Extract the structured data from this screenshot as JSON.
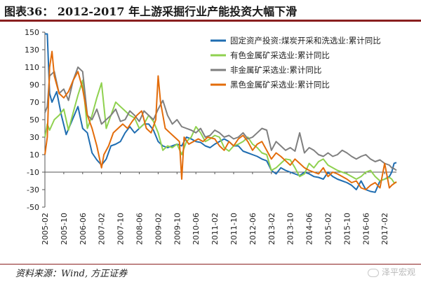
{
  "title": "图表36： 2012-2017 年上游采掘行业产能投资大幅下滑",
  "source": "资料来源：Wind, 方正证券",
  "watermark": "泽平宏观",
  "chart_data": {
    "type": "line",
    "title": "",
    "xlabel": "",
    "ylabel": "",
    "ylim": [
      -50,
      150
    ],
    "yticks": [
      -50,
      -30,
      -10,
      10,
      30,
      50,
      70,
      90,
      110,
      130,
      150
    ],
    "x_range": [
      "2005-02",
      "2017-07"
    ],
    "x_tick_labels": [
      "2005-02",
      "2005-10",
      "2006-06",
      "2007-02",
      "2007-10",
      "2008-06",
      "2009-02",
      "2009-10",
      "2010-06",
      "2011-02",
      "2011-10",
      "2012-06",
      "2013-02",
      "2013-10",
      "2014-06",
      "2015-02",
      "2015-10",
      "2016-06",
      "2017-02"
    ],
    "grid": false,
    "legend_position": "top-right",
    "series": [
      {
        "name": "固定资产投资:煤炭开采和洗选业:累计同比",
        "color": "#1f6db1",
        "x": [
          "2005-02",
          "2005-03",
          "2005-04",
          "2005-05",
          "2005-07",
          "2005-09",
          "2005-11",
          "2006-02",
          "2006-04",
          "2006-06",
          "2006-08",
          "2006-10",
          "2006-12",
          "2007-02",
          "2007-04",
          "2007-06",
          "2007-08",
          "2007-10",
          "2007-12",
          "2008-02",
          "2008-04",
          "2008-06",
          "2008-08",
          "2008-10",
          "2008-12",
          "2009-02",
          "2009-04",
          "2009-06",
          "2009-08",
          "2009-10",
          "2009-12",
          "2010-02",
          "2010-04",
          "2010-06",
          "2010-08",
          "2010-10",
          "2010-12",
          "2011-02",
          "2011-04",
          "2011-06",
          "2011-08",
          "2011-10",
          "2011-12",
          "2012-02",
          "2012-04",
          "2012-06",
          "2012-08",
          "2012-10",
          "2012-12",
          "2013-02",
          "2013-04",
          "2013-06",
          "2013-08",
          "2013-10",
          "2013-12",
          "2014-02",
          "2014-04",
          "2014-06",
          "2014-08",
          "2014-10",
          "2014-12",
          "2015-02",
          "2015-04",
          "2015-06",
          "2015-08",
          "2015-10",
          "2015-12",
          "2016-02",
          "2016-04",
          "2016-06",
          "2016-08",
          "2016-10",
          "2016-12",
          "2017-02",
          "2017-04",
          "2017-05",
          "2017-06",
          "2017-07"
        ],
        "values": [
          148,
          148,
          80,
          70,
          82,
          55,
          33,
          52,
          65,
          40,
          35,
          12,
          4,
          -2,
          5,
          20,
          22,
          25,
          35,
          42,
          35,
          40,
          45,
          45,
          38,
          25,
          20,
          18,
          20,
          22,
          20,
          30,
          28,
          25,
          24,
          20,
          18,
          22,
          25,
          28,
          25,
          20,
          20,
          14,
          12,
          10,
          8,
          5,
          3,
          -8,
          -12,
          -5,
          -8,
          -10,
          -12,
          -14,
          -10,
          -12,
          -15,
          -16,
          -18,
          -10,
          -15,
          -18,
          -20,
          -22,
          -25,
          -30,
          -20,
          -30,
          -32,
          -33,
          -20,
          -18,
          -15,
          -10,
          0,
          1
        ]
      },
      {
        "name": "有色金属矿采选业:累计同比",
        "color": "#8fd14f",
        "x": [
          "2005-02",
          "2005-03",
          "2005-04",
          "2005-06",
          "2005-08",
          "2005-10",
          "2005-12",
          "2006-02",
          "2006-04",
          "2006-06",
          "2006-08",
          "2006-10",
          "2006-12",
          "2007-02",
          "2007-04",
          "2007-06",
          "2007-08",
          "2007-10",
          "2007-12",
          "2008-02",
          "2008-04",
          "2008-06",
          "2008-08",
          "2008-10",
          "2008-12",
          "2009-02",
          "2009-04",
          "2009-06",
          "2009-08",
          "2009-10",
          "2009-12",
          "2010-02",
          "2010-04",
          "2010-06",
          "2010-08",
          "2010-10",
          "2010-12",
          "2011-02",
          "2011-04",
          "2011-06",
          "2011-08",
          "2011-10",
          "2011-12",
          "2012-02",
          "2012-04",
          "2012-06",
          "2012-08",
          "2012-10",
          "2012-12",
          "2013-02",
          "2013-04",
          "2013-06",
          "2013-08",
          "2013-10",
          "2013-12",
          "2014-02",
          "2014-04",
          "2014-06",
          "2014-08",
          "2014-10",
          "2014-12",
          "2015-02",
          "2015-04",
          "2015-06",
          "2015-08",
          "2015-10",
          "2015-12",
          "2016-02",
          "2016-04",
          "2016-06",
          "2016-08",
          "2016-10",
          "2016-12",
          "2017-02",
          "2017-04",
          "2017-05",
          "2017-06",
          "2017-07"
        ],
        "values": [
          30,
          45,
          38,
          50,
          55,
          62,
          38,
          58,
          78,
          95,
          40,
          55,
          75,
          92,
          40,
          55,
          70,
          65,
          60,
          55,
          52,
          40,
          45,
          55,
          48,
          35,
          15,
          20,
          18,
          22,
          10,
          25,
          30,
          42,
          35,
          25,
          28,
          32,
          30,
          18,
          14,
          20,
          22,
          25,
          30,
          22,
          18,
          12,
          10,
          -8,
          -5,
          0,
          5,
          4,
          -5,
          -15,
          -12,
          0,
          -5,
          2,
          5,
          -2,
          -5,
          -8,
          -10,
          -12,
          -15,
          -18,
          -15,
          -10,
          -8,
          -15,
          -20,
          -18,
          -16,
          -18,
          -22,
          -22
        ]
      },
      {
        "name": "非金属矿采选业:累计同比",
        "color": "#7f7f7f",
        "x": [
          "2005-02",
          "2005-03",
          "2005-04",
          "2005-06",
          "2005-08",
          "2005-10",
          "2005-12",
          "2006-02",
          "2006-04",
          "2006-06",
          "2006-08",
          "2006-10",
          "2006-12",
          "2007-02",
          "2007-04",
          "2007-06",
          "2007-08",
          "2007-10",
          "2007-12",
          "2008-02",
          "2008-04",
          "2008-06",
          "2008-08",
          "2008-10",
          "2008-12",
          "2009-02",
          "2009-04",
          "2009-06",
          "2009-08",
          "2009-10",
          "2009-12",
          "2010-02",
          "2010-04",
          "2010-06",
          "2010-08",
          "2010-10",
          "2010-12",
          "2011-02",
          "2011-04",
          "2011-06",
          "2011-08",
          "2011-10",
          "2011-12",
          "2012-02",
          "2012-04",
          "2012-06",
          "2012-08",
          "2012-10",
          "2012-12",
          "2013-02",
          "2013-04",
          "2013-06",
          "2013-08",
          "2013-10",
          "2013-12",
          "2014-02",
          "2014-04",
          "2014-06",
          "2014-08",
          "2014-10",
          "2014-12",
          "2015-02",
          "2015-04",
          "2015-06",
          "2015-08",
          "2015-10",
          "2015-12",
          "2016-02",
          "2016-04",
          "2016-06",
          "2016-08",
          "2016-10",
          "2016-12",
          "2017-02",
          "2017-04",
          "2017-05",
          "2017-06",
          "2017-07"
        ],
        "values": [
          58,
          65,
          100,
          105,
          80,
          85,
          72,
          95,
          110,
          105,
          55,
          50,
          62,
          45,
          50,
          55,
          62,
          48,
          50,
          60,
          55,
          48,
          60,
          55,
          50,
          62,
          72,
          55,
          45,
          50,
          42,
          40,
          38,
          35,
          40,
          30,
          32,
          38,
          35,
          30,
          32,
          28,
          30,
          35,
          28,
          30,
          35,
          40,
          38,
          15,
          25,
          20,
          15,
          18,
          14,
          35,
          12,
          18,
          15,
          10,
          8,
          12,
          8,
          10,
          15,
          12,
          8,
          5,
          8,
          10,
          5,
          2,
          4,
          0,
          -2,
          -5,
          -6,
          -8
        ]
      },
      {
        "name": "黑色金属矿采选业:累计同比",
        "color": "#e36c0a",
        "x": [
          "2005-02",
          "2005-03",
          "2005-04",
          "2005-05",
          "2005-06",
          "2005-08",
          "2005-10",
          "2005-12",
          "2006-02",
          "2006-04",
          "2006-06",
          "2006-08",
          "2006-10",
          "2006-12",
          "2007-02",
          "2007-03",
          "2007-05",
          "2007-07",
          "2007-09",
          "2007-11",
          "2008-01",
          "2008-03",
          "2008-05",
          "2008-07",
          "2008-09",
          "2008-11",
          "2009-01",
          "2009-02",
          "2009-03",
          "2009-05",
          "2009-07",
          "2009-09",
          "2009-11",
          "2009-12",
          "2010-01",
          "2010-03",
          "2010-05",
          "2010-07",
          "2010-09",
          "2010-11",
          "2011-02",
          "2011-04",
          "2011-06",
          "2011-08",
          "2011-10",
          "2011-12",
          "2012-02",
          "2012-04",
          "2012-06",
          "2012-08",
          "2012-10",
          "2012-12",
          "2013-02",
          "2013-04",
          "2013-06",
          "2013-08",
          "2013-10",
          "2013-12",
          "2014-02",
          "2014-04",
          "2014-06",
          "2014-08",
          "2014-10",
          "2014-12",
          "2015-02",
          "2015-04",
          "2015-06",
          "2015-08",
          "2015-10",
          "2015-12",
          "2016-02",
          "2016-04",
          "2016-06",
          "2016-08",
          "2016-10",
          "2016-12",
          "2017-02",
          "2017-04",
          "2017-05",
          "2017-06",
          "2017-07"
        ],
        "values": [
          10,
          30,
          110,
          128,
          100,
          80,
          75,
          82,
          95,
          105,
          85,
          55,
          40,
          20,
          -5,
          10,
          20,
          35,
          40,
          45,
          40,
          48,
          55,
          60,
          40,
          35,
          50,
          100,
          70,
          40,
          35,
          30,
          25,
          -18,
          30,
          22,
          25,
          28,
          25,
          30,
          28,
          20,
          15,
          25,
          20,
          28,
          32,
          25,
          15,
          22,
          25,
          15,
          5,
          12,
          8,
          3,
          -2,
          5,
          0,
          -5,
          -8,
          -10,
          -12,
          -5,
          -15,
          -10,
          -12,
          -15,
          -18,
          -22,
          -20,
          -28,
          -30,
          -25,
          -22,
          -28,
          0,
          -28,
          -25,
          -23,
          -21
        ]
      }
    ]
  }
}
